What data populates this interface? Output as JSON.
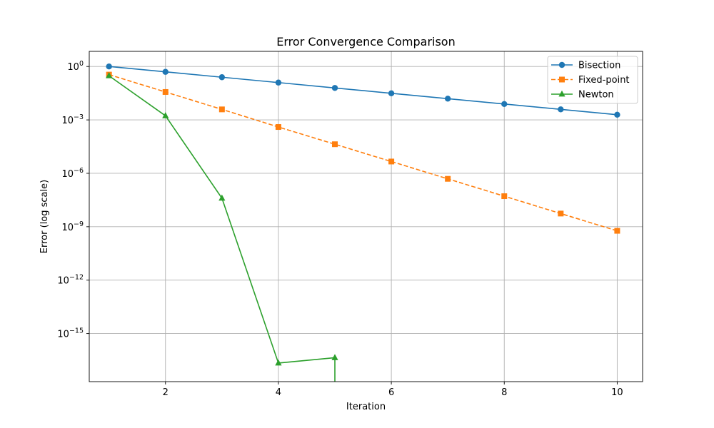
{
  "chart_data": {
    "type": "line",
    "title": "Error Convergence Comparison",
    "xlabel": "Iteration",
    "ylabel": "Error (log scale)",
    "yscale": "log",
    "xlim": [
      0.65,
      10.45
    ],
    "ylim_exp": [
      -17.7,
      0.85
    ],
    "xticks": [
      2,
      4,
      6,
      8,
      10
    ],
    "yticks": [
      {
        "exp": 0,
        "base": "10",
        "power": "0"
      },
      {
        "exp": -3,
        "base": "10",
        "power": "−3"
      },
      {
        "exp": -6,
        "base": "10",
        "power": "−6"
      },
      {
        "exp": -9,
        "base": "10",
        "power": "−9"
      },
      {
        "exp": -12,
        "base": "10",
        "power": "−12"
      },
      {
        "exp": -15,
        "base": "10",
        "power": "−15"
      }
    ],
    "grid": true,
    "legend_position": "top-right",
    "series": [
      {
        "name": "Bisection",
        "color": "#1f77b4",
        "linestyle": "solid",
        "marker": "circle",
        "x": [
          1,
          2,
          3,
          4,
          5,
          6,
          7,
          8,
          9,
          10
        ],
        "y": [
          1.0,
          0.5,
          0.25,
          0.125,
          0.0625,
          0.03125,
          0.015625,
          0.0078125,
          0.00390625,
          0.001953125
        ]
      },
      {
        "name": "Fixed-point",
        "color": "#ff7f0e",
        "linestyle": "dashed",
        "marker": "square",
        "x": [
          1,
          2,
          3,
          4,
          5,
          6,
          7,
          8,
          9,
          10
        ],
        "y": [
          0.35,
          0.037,
          0.0039,
          0.0004,
          4.3e-05,
          4.6e-06,
          4.9e-07,
          5.2e-08,
          5.5e-09,
          5.9e-10
        ]
      },
      {
        "name": "Newton",
        "color": "#2ca02c",
        "linestyle": "solid",
        "marker": "triangle",
        "x": [
          1,
          2,
          3,
          4,
          5
        ],
        "y": [
          0.3,
          0.0017,
          4e-08,
          2.2e-17,
          4.4e-17
        ],
        "drop_to_zero_at": 5
      }
    ]
  }
}
